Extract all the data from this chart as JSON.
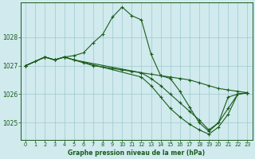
{
  "background_color": "#d0eaee",
  "grid_color": "#a0c8cc",
  "line_color": "#1a5c1a",
  "title": "Graphe pression niveau de la mer (hPa)",
  "ylim": [
    1024.4,
    1029.2
  ],
  "xlim": [
    -0.5,
    23.5
  ],
  "yticks": [
    1025,
    1026,
    1027,
    1028
  ],
  "xticks": [
    0,
    1,
    2,
    3,
    4,
    5,
    6,
    7,
    8,
    9,
    10,
    11,
    12,
    13,
    14,
    15,
    16,
    17,
    18,
    19,
    20,
    21,
    22,
    23
  ],
  "series": [
    {
      "x": [
        0,
        1,
        2,
        3,
        4,
        5,
        6,
        7,
        8,
        9,
        10,
        11,
        12,
        13,
        14,
        15,
        16,
        17,
        18,
        19,
        20,
        21,
        22,
        23
      ],
      "y": [
        1027.0,
        1027.15,
        1027.3,
        1027.2,
        1027.3,
        1027.35,
        1027.45,
        1027.8,
        1028.1,
        1028.7,
        1029.05,
        1028.75,
        1028.6,
        1027.4,
        1026.65,
        1026.55,
        1026.1,
        1025.55,
        1025.0,
        1024.7,
        1025.0,
        1025.9,
        1026.0,
        1026.05
      ]
    },
    {
      "x": [
        0,
        2,
        3,
        4,
        5,
        6,
        7,
        8,
        9,
        10,
        11,
        12,
        13,
        14,
        15,
        16,
        17,
        18,
        19,
        20,
        21,
        22,
        23
      ],
      "y": [
        1027.0,
        1027.3,
        1027.2,
        1027.3,
        1027.2,
        1027.1,
        1027.0,
        1026.95,
        1026.9,
        1026.85,
        1026.8,
        1026.75,
        1026.7,
        1026.65,
        1026.6,
        1026.55,
        1026.5,
        1026.4,
        1026.3,
        1026.2,
        1026.15,
        1026.1,
        1026.05
      ]
    },
    {
      "x": [
        0,
        2,
        3,
        4,
        5,
        12,
        13,
        14,
        15,
        16,
        17,
        18,
        19,
        20,
        21,
        22,
        23
      ],
      "y": [
        1027.0,
        1027.3,
        1027.2,
        1027.3,
        1027.2,
        1026.75,
        1026.55,
        1026.3,
        1026.0,
        1025.7,
        1025.4,
        1025.1,
        1024.75,
        1025.0,
        1025.5,
        1026.0,
        1026.05
      ]
    },
    {
      "x": [
        0,
        2,
        3,
        4,
        5,
        12,
        13,
        14,
        15,
        16,
        17,
        18,
        19,
        20,
        21,
        22,
        23
      ],
      "y": [
        1027.0,
        1027.3,
        1027.2,
        1027.3,
        1027.2,
        1026.6,
        1026.3,
        1025.9,
        1025.5,
        1025.2,
        1024.95,
        1024.75,
        1024.6,
        1024.85,
        1025.3,
        1026.0,
        1026.05
      ]
    }
  ]
}
